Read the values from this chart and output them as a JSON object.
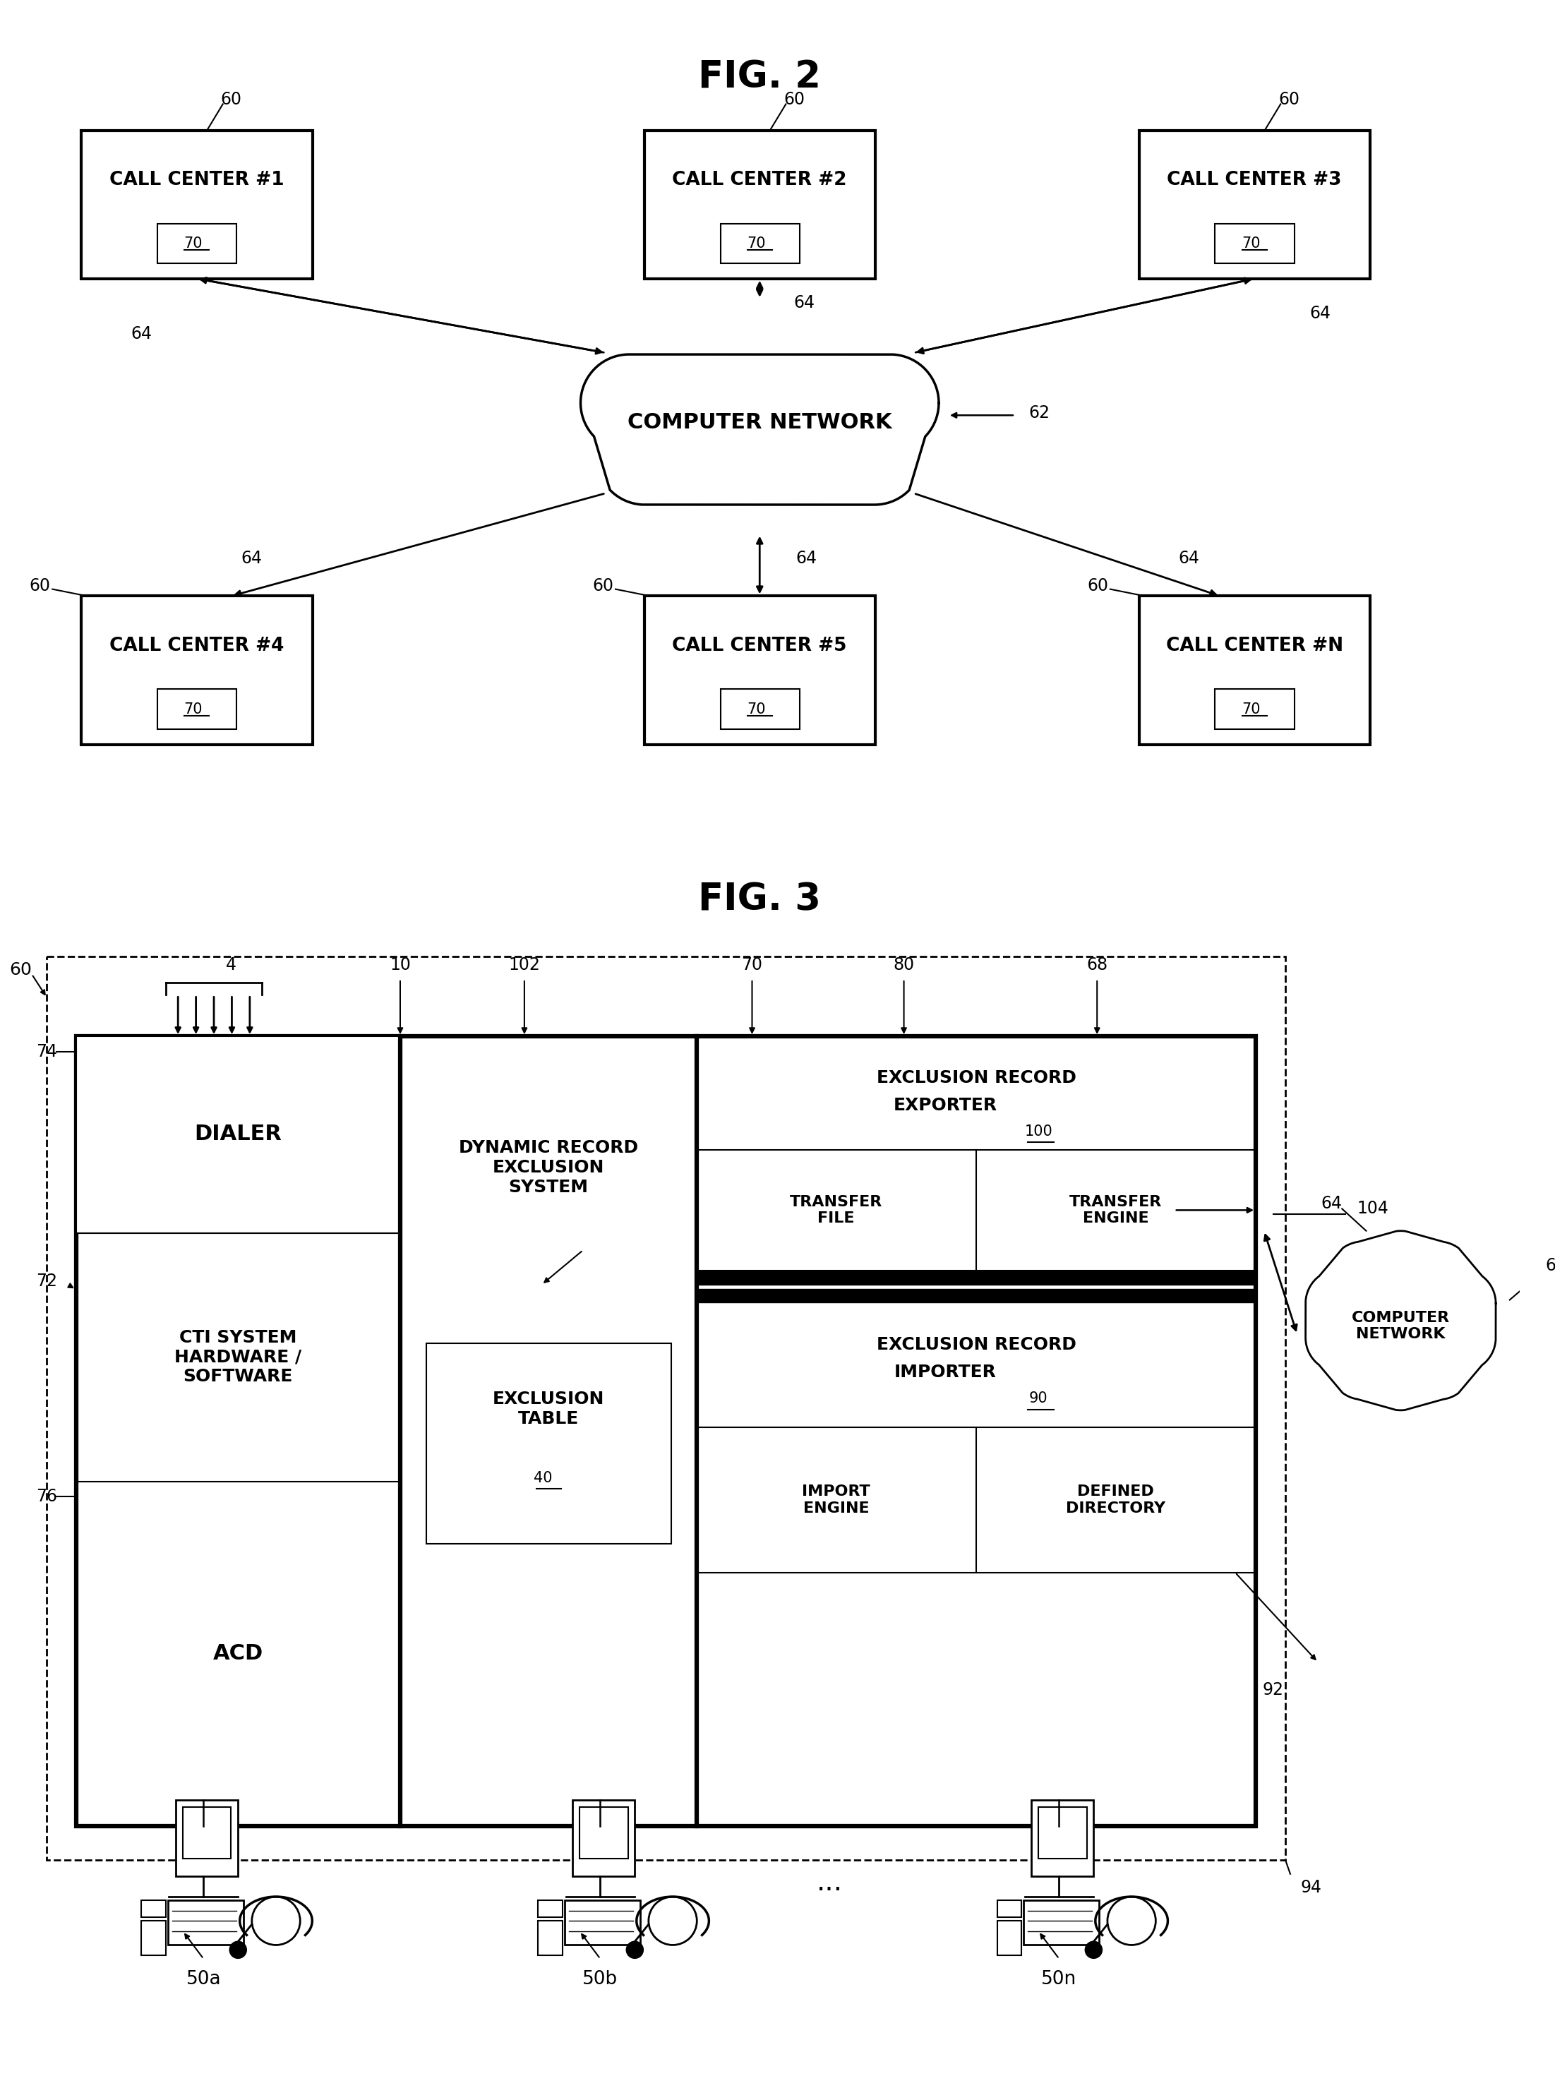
{
  "fig2_title": "FIG. 2",
  "fig3_title": "FIG. 3",
  "bg": "#ffffff",
  "call_centers_top": [
    "CALL CENTER #1",
    "CALL CENTER #2",
    "CALL CENTER #3"
  ],
  "call_centers_bottom": [
    "CALL CENTER #4",
    "CALL CENTER #5",
    "CALL CENTER #N"
  ],
  "network_label": "COMPUTER NETWORK",
  "network_label2": "COMPUTER\nNETWORK",
  "dialer_label": "DIALER",
  "cti_label": "CTI SYSTEM\nHARDWARE /\nSOFTWARE",
  "acd_label": "ACD",
  "dres_label": "DYNAMIC RECORD\nEXCLUSION\nSYSTEM",
  "excl_table_label": "EXCLUSION\nTABLE",
  "excl_exp_l1": "EXCLUSION RECORD",
  "excl_exp_l2": "EXPORTER",
  "transfer_file": "TRANSFER\nFILE",
  "transfer_engine": "TRANSFER\nENGINE",
  "excl_imp_l1": "EXCLUSION RECORD",
  "excl_imp_l2": "IMPORTER",
  "import_engine": "IMPORT\nENGINE",
  "defined_dir": "DEFINED\nDIRECTORY",
  "agents": [
    "50a",
    "50b",
    "50n"
  ],
  "n4": "4",
  "n10": "10",
  "n40": "40",
  "n60": "60",
  "n62": "62",
  "n64": "64",
  "n68": "68",
  "n70": "70",
  "n72": "72",
  "n74": "74",
  "n76": "76",
  "n80": "80",
  "n90": "90",
  "n92": "92",
  "n94": "94",
  "n100": "100",
  "n102": "102",
  "n104": "104"
}
